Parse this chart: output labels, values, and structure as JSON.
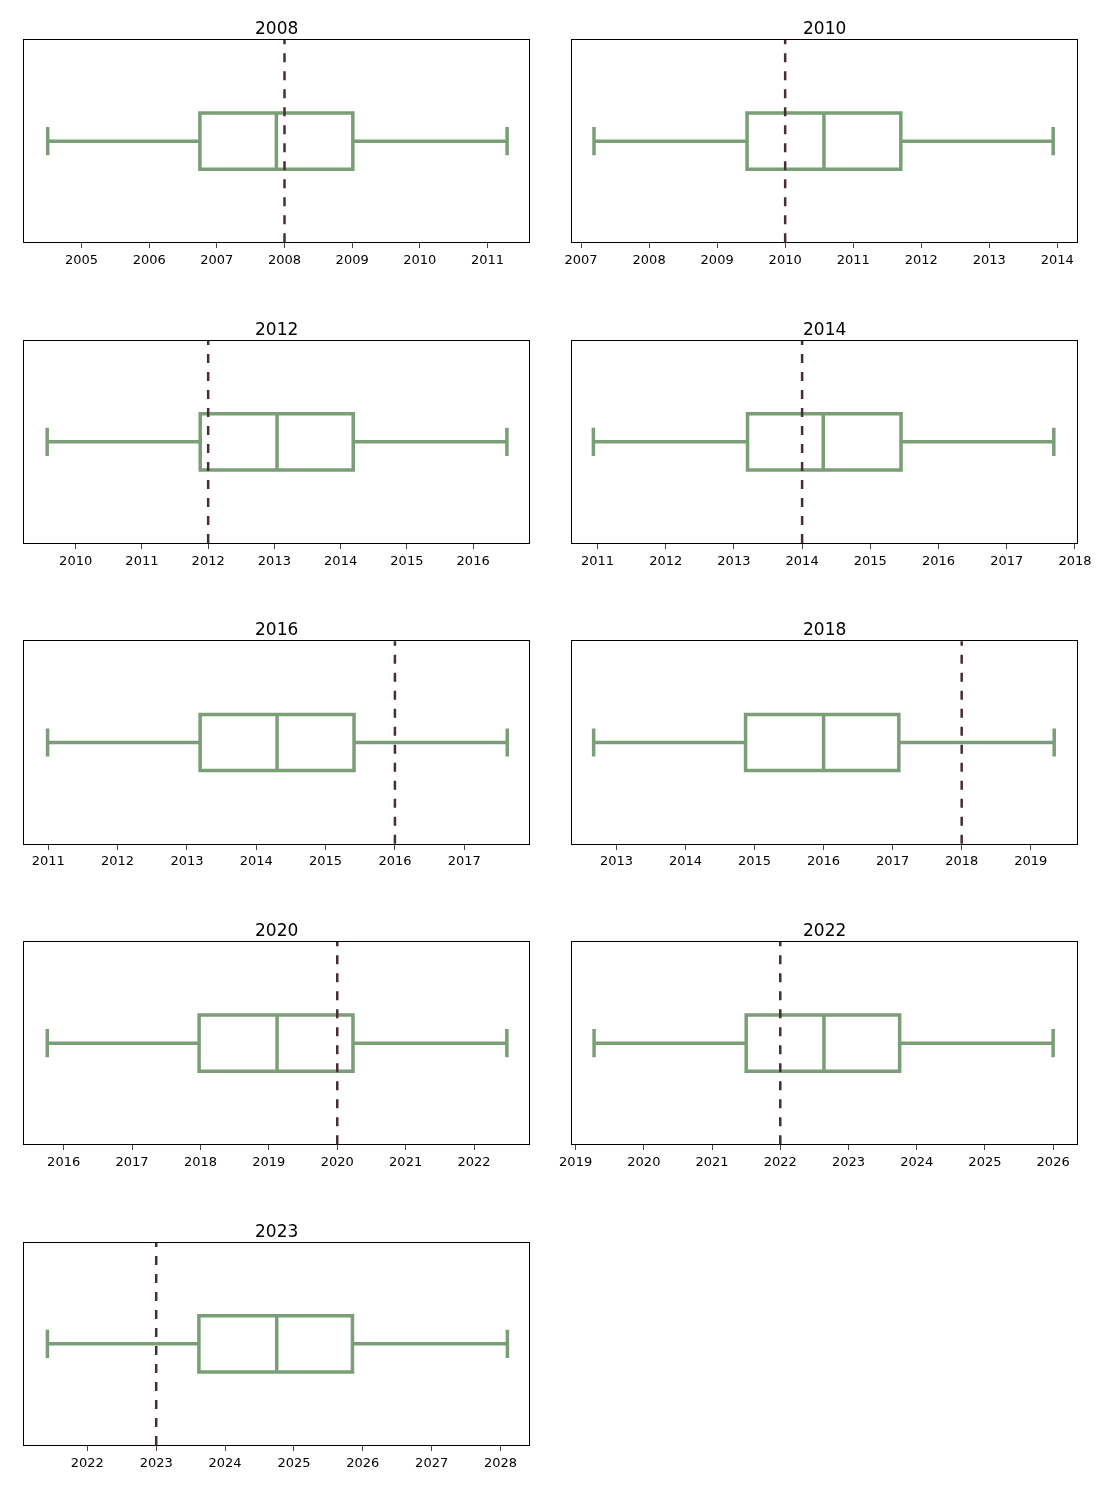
{
  "chart_data": [
    {
      "type": "box",
      "title": "2008",
      "orientation": "horizontal",
      "categories": [
        null
      ],
      "color": "#7a9e76",
      "boxes": [
        {
          "low": 2004.5,
          "q1": 2006.75,
          "median": 2007.88,
          "q3": 2009.01,
          "high": 2011.29
        }
      ],
      "xlim": [
        2004.15,
        2011.62
      ],
      "xticks": [
        2005,
        2006,
        2007,
        2008,
        2009,
        2010,
        2011
      ],
      "tick_labels": "x",
      "ref_lines": [
        {
          "axis": "x",
          "value": 2008,
          "color": "#4a2c36",
          "line_style": "dashed"
        }
      ]
    },
    {
      "type": "box",
      "title": "2010",
      "orientation": "horizontal",
      "categories": [
        null
      ],
      "color": "#7a9e76",
      "boxes": [
        {
          "low": 2007.19,
          "q1": 2009.44,
          "median": 2010.57,
          "q3": 2011.7,
          "high": 2013.94
        }
      ],
      "xlim": [
        2006.86,
        2014.29
      ],
      "xticks": [
        2007,
        2008,
        2009,
        2010,
        2011,
        2012,
        2013,
        2014
      ],
      "tick_labels": "x",
      "ref_lines": [
        {
          "axis": "x",
          "value": 2010,
          "color": "#4a2c36",
          "line_style": "dashed"
        }
      ]
    },
    {
      "type": "box",
      "title": "2012",
      "orientation": "horizontal",
      "categories": [
        null
      ],
      "color": "#7a9e76",
      "boxes": [
        {
          "low": 2009.57,
          "q1": 2011.88,
          "median": 2013.04,
          "q3": 2014.19,
          "high": 2016.51
        }
      ],
      "xlim": [
        2009.22,
        2016.85
      ],
      "xticks": [
        2010,
        2011,
        2012,
        2013,
        2014,
        2015,
        2016
      ],
      "tick_labels": "x",
      "ref_lines": [
        {
          "axis": "x",
          "value": 2012,
          "color": "#4a2c36",
          "line_style": "dashed"
        }
      ]
    },
    {
      "type": "box",
      "title": "2014",
      "orientation": "horizontal",
      "categories": [
        null
      ],
      "color": "#7a9e76",
      "boxes": [
        {
          "low": 2010.94,
          "q1": 2013.2,
          "median": 2014.31,
          "q3": 2015.45,
          "high": 2017.69
        }
      ],
      "xlim": [
        2010.62,
        2018.03
      ],
      "xticks": [
        2011,
        2012,
        2013,
        2014,
        2015,
        2016,
        2017,
        2018
      ],
      "tick_labels": "x",
      "ref_lines": [
        {
          "axis": "x",
          "value": 2014,
          "color": "#4a2c36",
          "line_style": "dashed"
        }
      ]
    },
    {
      "type": "box",
      "title": "2016",
      "orientation": "horizontal",
      "categories": [
        null
      ],
      "color": "#7a9e76",
      "boxes": [
        {
          "low": 2010.99,
          "q1": 2013.19,
          "median": 2014.3,
          "q3": 2015.41,
          "high": 2017.62
        }
      ],
      "xlim": [
        2010.65,
        2017.94
      ],
      "xticks": [
        2011,
        2012,
        2013,
        2014,
        2015,
        2016,
        2017
      ],
      "tick_labels": "x",
      "ref_lines": [
        {
          "axis": "x",
          "value": 2016,
          "color": "#4a2c36",
          "line_style": "dashed"
        }
      ]
    },
    {
      "type": "box",
      "title": "2018",
      "orientation": "horizontal",
      "categories": [
        null
      ],
      "color": "#7a9e76",
      "boxes": [
        {
          "low": 2012.67,
          "q1": 2014.87,
          "median": 2016.0,
          "q3": 2017.09,
          "high": 2019.34
        }
      ],
      "xlim": [
        2012.35,
        2019.67
      ],
      "xticks": [
        2013,
        2014,
        2015,
        2016,
        2017,
        2018,
        2019
      ],
      "tick_labels": "x",
      "ref_lines": [
        {
          "axis": "x",
          "value": 2018,
          "color": "#4a2c36",
          "line_style": "dashed"
        }
      ]
    },
    {
      "type": "box",
      "title": "2020",
      "orientation": "horizontal",
      "categories": [
        null
      ],
      "color": "#7a9e76",
      "boxes": [
        {
          "low": 2015.76,
          "q1": 2017.98,
          "median": 2019.12,
          "q3": 2020.23,
          "high": 2022.48
        }
      ],
      "xlim": [
        2015.42,
        2022.81
      ],
      "xticks": [
        2016,
        2017,
        2018,
        2019,
        2020,
        2021,
        2022
      ],
      "tick_labels": "x",
      "ref_lines": [
        {
          "axis": "x",
          "value": 2020,
          "color": "#4a2c36",
          "line_style": "dashed"
        }
      ]
    },
    {
      "type": "box",
      "title": "2022",
      "orientation": "horizontal",
      "categories": [
        null
      ],
      "color": "#7a9e76",
      "boxes": [
        {
          "low": 2019.27,
          "q1": 2021.5,
          "median": 2022.64,
          "q3": 2023.75,
          "high": 2026.0
        }
      ],
      "xlim": [
        2018.94,
        2026.35
      ],
      "xticks": [
        2019,
        2020,
        2021,
        2022,
        2023,
        2024,
        2025,
        2026
      ],
      "tick_labels": "x",
      "ref_lines": [
        {
          "axis": "x",
          "value": 2022,
          "color": "#4a2c36",
          "line_style": "dashed"
        }
      ]
    },
    {
      "type": "box",
      "title": "2023",
      "orientation": "horizontal",
      "categories": [
        null
      ],
      "color": "#7a9e76",
      "boxes": [
        {
          "low": 2021.42,
          "q1": 2023.62,
          "median": 2024.75,
          "q3": 2025.85,
          "high": 2028.1
        }
      ],
      "xlim": [
        2021.08,
        2028.42
      ],
      "xticks": [
        2022,
        2023,
        2024,
        2025,
        2026,
        2027,
        2028
      ],
      "tick_labels": "x",
      "ref_lines": [
        {
          "axis": "x",
          "value": 2023,
          "color": "#4a2c36",
          "line_style": "dashed"
        }
      ]
    }
  ]
}
